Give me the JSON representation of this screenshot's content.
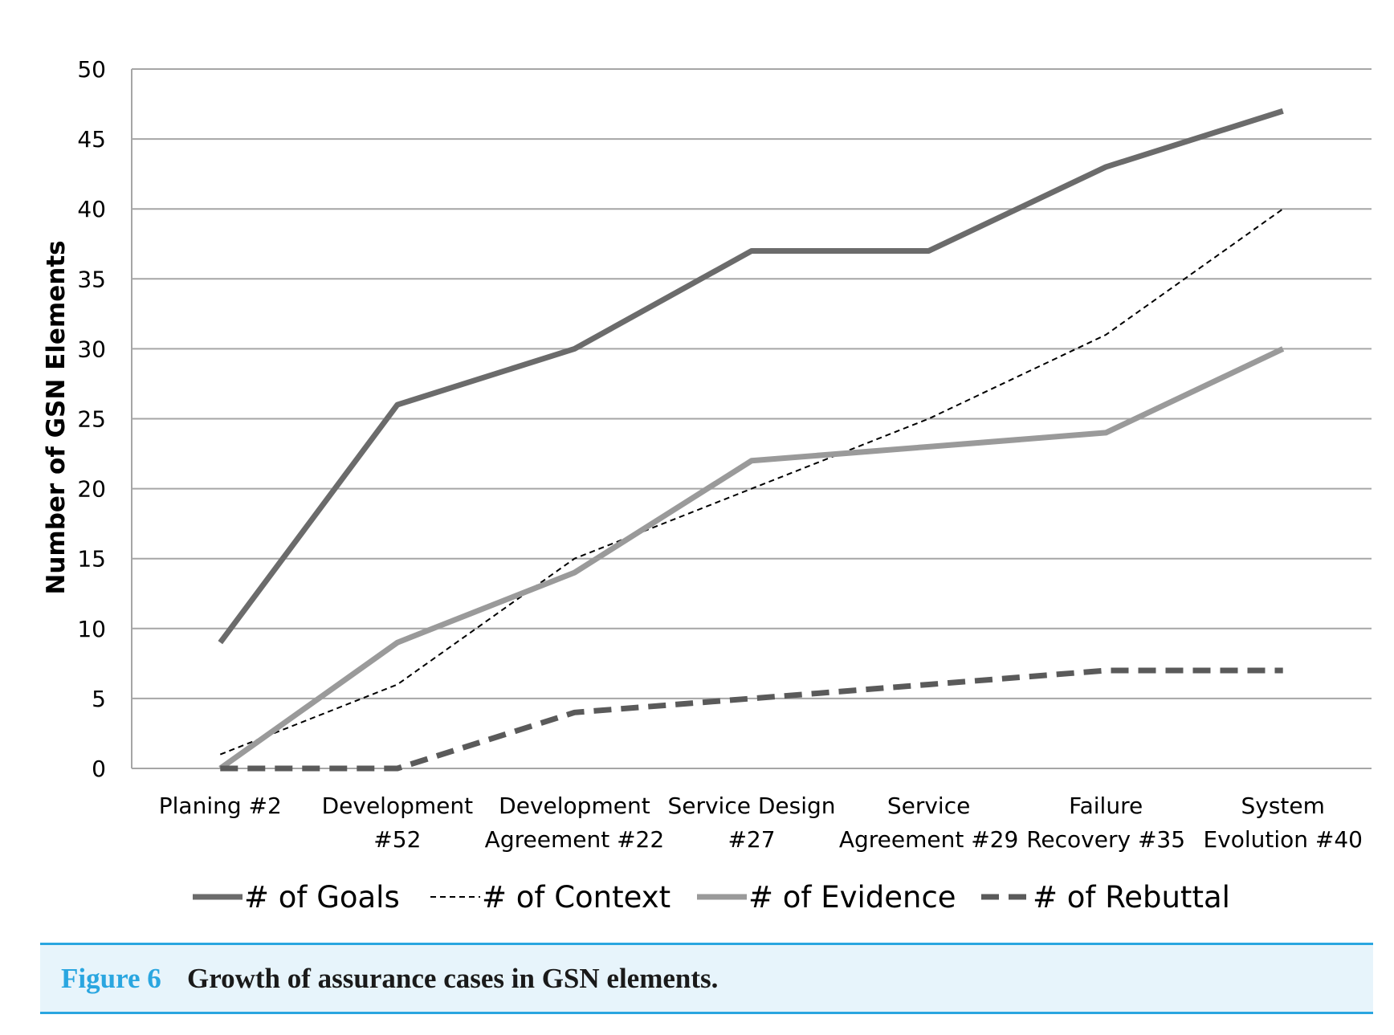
{
  "chart_data": {
    "type": "line",
    "title": "",
    "xlabel": "",
    "ylabel": "Number of GSN Elements",
    "ylim": [
      0,
      50
    ],
    "yticks": [
      0,
      5,
      10,
      15,
      20,
      25,
      30,
      35,
      40,
      45,
      50
    ],
    "grid": "horizontal",
    "legend_position": "bottom",
    "categories": [
      [
        "Planing #2"
      ],
      [
        "Development",
        "#52"
      ],
      [
        "Development",
        "Agreement #22"
      ],
      [
        "Service Design",
        "#27"
      ],
      [
        "Service",
        "Agreement #29"
      ],
      [
        "Failure",
        "Recovery #35"
      ],
      [
        "System",
        "Evolution #40"
      ]
    ],
    "series": [
      {
        "name": "# of Goals",
        "values": [
          9,
          26,
          30,
          37,
          37,
          43,
          47
        ],
        "color": "#6b6b6b",
        "style": "solid-thick"
      },
      {
        "name": "# of Context",
        "values": [
          1,
          6,
          15,
          20,
          25,
          31,
          40
        ],
        "color": "#000000",
        "style": "dashed-thin"
      },
      {
        "name": "# of Evidence",
        "values": [
          0,
          9,
          14,
          22,
          23,
          24,
          30
        ],
        "color": "#9a9a9a",
        "style": "solid-thick"
      },
      {
        "name": "# of Rebuttal",
        "values": [
          0,
          0,
          4,
          5,
          6,
          7,
          7
        ],
        "color": "#5a5a5a",
        "style": "dashed-thick"
      }
    ]
  },
  "caption": {
    "label": "Figure 6",
    "text": "Growth of assurance cases in GSN elements."
  }
}
